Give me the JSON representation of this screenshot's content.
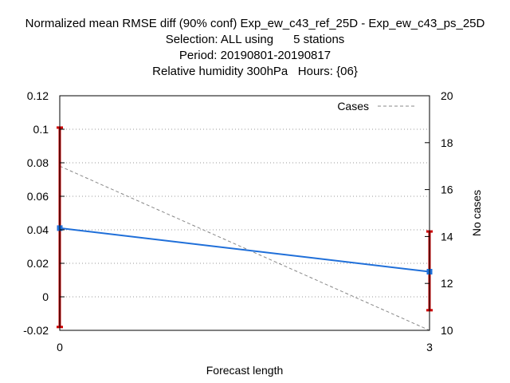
{
  "chart_data": {
    "type": "line",
    "title_lines": [
      "Normalized mean RMSE diff (90% conf) Exp_ew_c43_ref_25D - Exp_ew_c43_ps_25D",
      "Selection: ALL using      5 stations",
      "Period: 20190801-20190817",
      "Relative humidity 300hPa   Hours: {06}"
    ],
    "xlabel": "Forecast length",
    "ylabel": "",
    "y2label": "No cases",
    "x": [
      0,
      3
    ],
    "xlim": [
      0,
      3
    ],
    "xticks": [
      "0",
      "3"
    ],
    "ylim": [
      -0.02,
      0.12
    ],
    "yticks": [
      "-0.02",
      "0",
      "0.02",
      "0.04",
      "0.06",
      "0.08",
      "0.1",
      "0.12"
    ],
    "y2lim": [
      10,
      20
    ],
    "y2ticks": [
      "10",
      "12",
      "14",
      "16",
      "18",
      "20"
    ],
    "grid": true,
    "legend_position": "top-right",
    "series": [
      {
        "values": [
          0.041,
          0.015
        ],
        "error_low": [
          -0.018,
          -0.008
        ],
        "error_high": [
          0.101,
          0.039
        ],
        "color": "#1f6fd9",
        "error_color": "#cc0000",
        "axis": "left"
      },
      {
        "name": "Cases",
        "values": [
          17,
          10
        ],
        "color": "#888888",
        "style": "dashed",
        "axis": "right"
      }
    ]
  }
}
